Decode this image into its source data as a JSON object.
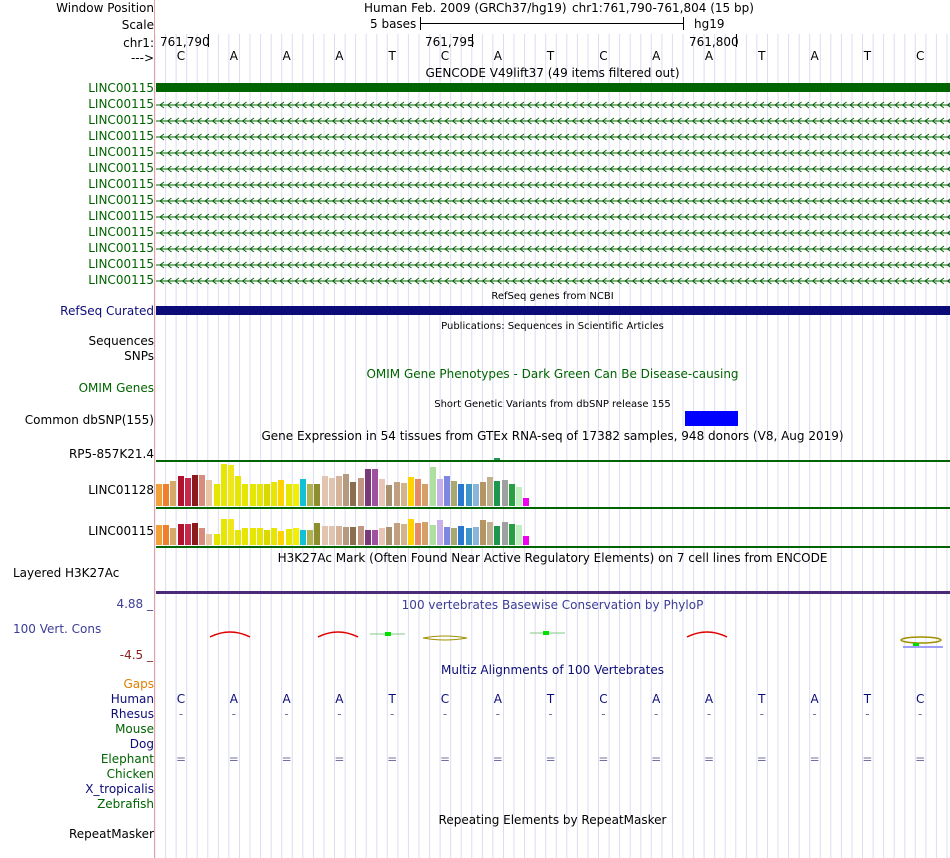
{
  "header": {
    "window_position_label": "Window Position",
    "scale_label": "Scale",
    "chrom_label": "chr1:",
    "strand_label": "--->",
    "assembly_title": "Human Feb. 2009 (GRCh37/hg19)",
    "position": "chr1:761,790-761,804 (15 bp)",
    "scale_text": "5 bases",
    "db_text": "hg19",
    "ticks": [
      "761,790",
      "761,795",
      "761,800"
    ]
  },
  "sequence": [
    "C",
    "A",
    "A",
    "A",
    "T",
    "C",
    "A",
    "T",
    "C",
    "A",
    "A",
    "T",
    "A",
    "T",
    "C"
  ],
  "gencode": {
    "title": "GENCODE V49lift37 (49 items filtered out)",
    "genes": [
      "LINC00115",
      "LINC00115",
      "LINC00115",
      "LINC00115",
      "LINC00115",
      "LINC00115",
      "LINC00115",
      "LINC00115",
      "LINC00115",
      "LINC00115",
      "LINC00115",
      "LINC00115",
      "LINC00115"
    ]
  },
  "refseq": {
    "title": "RefSeq genes from NCBI",
    "label": "RefSeq Curated"
  },
  "publications": {
    "title": "Publications: Sequences in Scientific Articles",
    "labels": [
      "Sequences",
      "SNPs"
    ]
  },
  "omim": {
    "title": "OMIM Gene Phenotypes - Dark Green Can Be Disease-causing",
    "label": "OMIM Genes"
  },
  "dbsnp": {
    "title": "Short Genetic Variants from dbSNP release 155",
    "label": "Common dbSNP(155)"
  },
  "gtex": {
    "title": "Gene Expression in 54 tissues from GTEx RNA-seq of 17382 samples, 948 donors (V8, Aug 2019)",
    "genes": [
      "RP5-857K21.4",
      "LINC01128",
      "LINC00115"
    ],
    "colors": [
      "#f2a03c",
      "#f07f2c",
      "#d6a86a",
      "#b0122e",
      "#c7284b",
      "#8b1a1a",
      "#d78c7c",
      "#e8c5a3",
      "#e6e600",
      "#e6e600",
      "#f0e61e",
      "#e6e600",
      "#e6e600",
      "#e6e600",
      "#e6e600",
      "#d9d900",
      "#e6e600",
      "#ffd200",
      "#e6e600",
      "#f0f000",
      "#13c1d6",
      "#b2b24e",
      "#8e8e2e",
      "#e2c4b0",
      "#e0c4b0",
      "#d4b49a",
      "#b59a80",
      "#8b6e4e",
      "#c29680",
      "#7a3a7a",
      "#a050a0",
      "#e8c5b5",
      "#a89070",
      "#c0a080",
      "#d2b48c",
      "#ffd200",
      "#e58a66",
      "#d4a068",
      "#b0e0a0",
      "#c8b0e8",
      "#7e88e0",
      "#a8a870",
      "#2878d0",
      "#3c96c8",
      "#8ab4d8",
      "#b49664",
      "#c0b090",
      "#1e9650",
      "#a0a0a0",
      "#26a040",
      "#c0f0c0",
      "#f000f0"
    ],
    "heights_rp5": [
      0,
      0,
      0,
      0,
      0,
      0,
      0,
      0,
      0,
      0,
      0,
      0,
      0,
      0,
      0,
      0,
      0,
      0,
      0,
      0,
      0,
      0,
      0,
      0,
      0,
      0,
      0,
      0,
      0,
      0,
      0,
      0,
      0,
      0,
      0,
      0,
      0,
      0,
      0,
      0,
      0,
      0,
      0,
      0,
      0,
      0,
      0,
      0.12,
      0,
      0,
      0,
      0
    ],
    "heights_linc01128": [
      0.5,
      0.5,
      0.58,
      0.7,
      0.66,
      0.72,
      0.72,
      0.6,
      0.5,
      0.98,
      0.95,
      0.7,
      0.5,
      0.5,
      0.5,
      0.5,
      0.55,
      0.6,
      0.52,
      0.5,
      0.62,
      0.5,
      0.5,
      0.7,
      0.66,
      0.7,
      0.74,
      0.55,
      0.65,
      0.86,
      0.86,
      0.62,
      0.48,
      0.56,
      0.54,
      0.68,
      0.62,
      0.5,
      0.9,
      0.62,
      0.7,
      0.58,
      0.5,
      0.5,
      0.5,
      0.56,
      0.68,
      0.58,
      0.6,
      0.5,
      0.45,
      0.18
    ],
    "heights_linc00115": [
      0.58,
      0.58,
      0.48,
      0.6,
      0.6,
      0.62,
      0.48,
      0.3,
      0.3,
      0.75,
      0.75,
      0.44,
      0.48,
      0.48,
      0.48,
      0.44,
      0.48,
      0.4,
      0.46,
      0.48,
      0.42,
      0.42,
      0.62,
      0.55,
      0.55,
      0.55,
      0.5,
      0.5,
      0.55,
      0.42,
      0.42,
      0.48,
      0.5,
      0.62,
      0.6,
      0.75,
      0.62,
      0.65,
      0.58,
      0.72,
      0.52,
      0.48,
      0.55,
      0.48,
      0.5,
      0.7,
      0.65,
      0.55,
      0.65,
      0.6,
      0.58,
      0.25
    ]
  },
  "h3k27ac": {
    "title": "H3K27Ac Mark (Often Found Near Active Regulatory Elements) on 7 cell lines from ENCODE",
    "label": "Layered H3K27Ac"
  },
  "conservation": {
    "title": "100 vertebrates Basewise Conservation by PhyloP",
    "label": "100 Vert. Cons",
    "ymax": "4.88 _",
    "ymin": "-4.5 _"
  },
  "multiz": {
    "title": "Multiz Alignments of 100 Vertebrates",
    "gaps_label": "Gaps",
    "species": [
      "Human",
      "Rhesus",
      "Mouse",
      "Dog",
      "Elephant",
      "Chicken",
      "X_tropicalis",
      "Zebrafish"
    ],
    "rhesus": [
      "-",
      "-",
      "-",
      "-",
      "-",
      "-",
      "-",
      "-",
      "-",
      "-",
      "-",
      "-",
      "-",
      "-",
      "-"
    ],
    "elephant": [
      "=",
      "=",
      "=",
      "=",
      "=",
      "=",
      "=",
      "=",
      "=",
      "=",
      "=",
      "=",
      "=",
      "=",
      "="
    ]
  },
  "repeatmasker": {
    "title": "Repeating Elements by RepeatMasker",
    "label": "RepeatMasker"
  },
  "colors": {
    "gencode_green": "#006400",
    "refseq_navy": "#0c0c78",
    "gtex_border": "#006400",
    "snp_blue": "#0000ff",
    "cons_label": "#3c3c96",
    "multiz_label": "#0c0c78",
    "gaps_label": "#e08000",
    "grid_line": "#dcdcf0"
  }
}
